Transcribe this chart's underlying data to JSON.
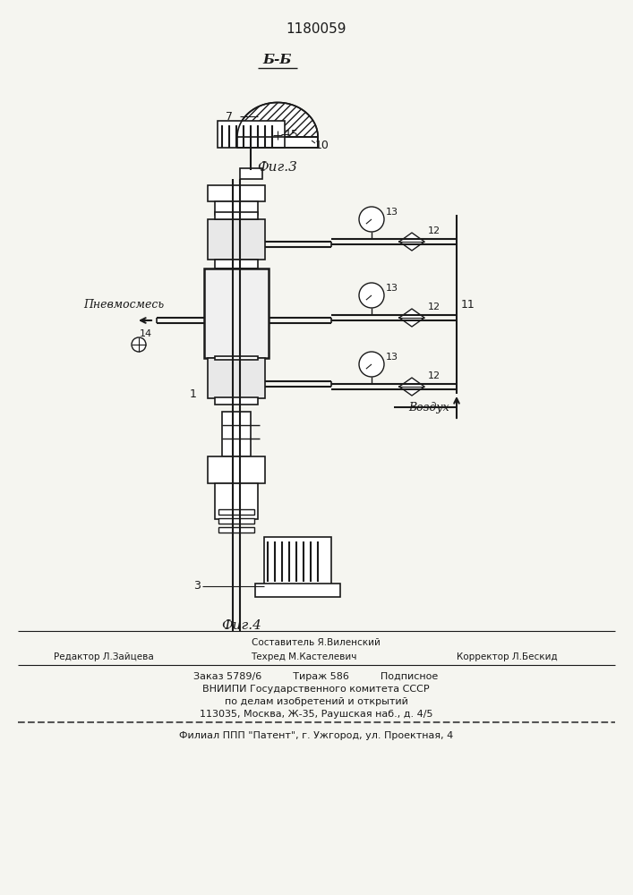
{
  "title": "1180059",
  "bg_color": "#f5f5f0",
  "fig3_label": "Б-Б",
  "fig3_caption": "Фиг.3",
  "fig4_caption": "Фиг.4",
  "label_15": "15",
  "label_14": "14",
  "label_13": "13",
  "label_12": "12",
  "label_11": "11",
  "label_10": "10",
  "label_7": "7",
  "label_3": "3",
  "label_1": "1",
  "text_pnevmosmes": "Пневмосмесь",
  "text_vozdukh": "Воздух",
  "footer_line1": "Составитель Я.Виленский",
  "footer_line2_left": "Редактор Л.Зайцева",
  "footer_line2_mid": "Техред М.Кастелевич",
  "footer_line2_right": "Корректор Л.Бескид",
  "footer_line3": "Заказ 5789/6          Тираж 586          Подписное",
  "footer_line4": "ВНИИПИ Государственного комитета СССР",
  "footer_line5": "по делам изобретений и открытий",
  "footer_line6": "113035, Москва, Ж-35, Раушская наб., д. 4/5",
  "footer_line7": "Филиал ППП \"Патент\", г. Ужгород, ул. Проектная, 4",
  "line_color": "#1a1a1a",
  "hatch_color": "#1a1a1a"
}
